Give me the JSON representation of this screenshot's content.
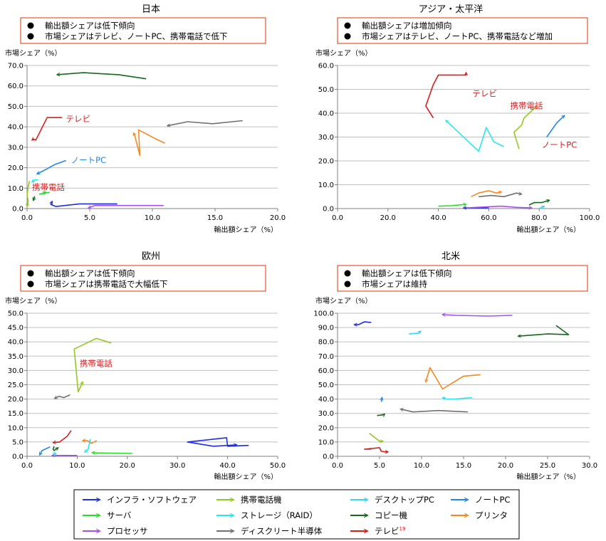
{
  "colors": {
    "infra": "#1f2fe0",
    "mobile": "#92c91f",
    "desktop": "#39d6f2",
    "notepc": "#2187e6",
    "server": "#24e024",
    "storage": "#27e8f0",
    "copier": "#15691a",
    "printer": "#f58820",
    "processor": "#a64ef0",
    "discrete": "#707070",
    "tv": "#d81d1d",
    "note_border": "#e8552e",
    "grid": "#c0c0c0",
    "axis": "#808080"
  },
  "legend": {
    "items": [
      {
        "key": "infra",
        "label": "インフラ・ソフトウェア"
      },
      {
        "key": "mobile",
        "label": "携帯電話機"
      },
      {
        "key": "desktop",
        "label": "デスクトップPC"
      },
      {
        "key": "notepc",
        "label": "ノートPC"
      },
      {
        "key": "server",
        "label": "サーバ"
      },
      {
        "key": "storage",
        "label": "ストレージ（RAID）"
      },
      {
        "key": "copier",
        "label": "コピー機"
      },
      {
        "key": "printer",
        "label": "プリンタ"
      },
      {
        "key": "processor",
        "label": "プロセッサ"
      },
      {
        "key": "discrete",
        "label": "ディスクリート半導体"
      },
      {
        "key": "tv",
        "label": "テレビ",
        "sup": "19"
      }
    ]
  },
  "chart_data": [
    {
      "type": "line",
      "title": "日本",
      "notes": [
        "輸出額シェアは低下傾向",
        "市場シェアはテレビ、ノートPC、携帯電話で低下"
      ],
      "xlabel": "輸出額シェア（%）",
      "ylabel": "市場シェア（%）",
      "xlim": [
        0,
        20
      ],
      "ylim": [
        0,
        70
      ],
      "xticks": [
        "0.0",
        "5.0",
        "10.0",
        "15.0",
        "20.0"
      ],
      "yticks": [
        "0.0",
        "10.0",
        "20.0",
        "30.0",
        "40.0",
        "50.0",
        "60.0",
        "70.0"
      ],
      "grid": true,
      "annotations": [
        {
          "text": "テレビ",
          "x": 3.1,
          "y": 42.5,
          "color_key": "tv"
        },
        {
          "text": "ノートPC",
          "x": 3.5,
          "y": 22.3,
          "color_key": "notepc"
        },
        {
          "text": "携帯電話",
          "x": 0.4,
          "y": 9.0,
          "color_key": "tv"
        }
      ],
      "series": [
        {
          "key": "copier",
          "points": [
            [
              9.5,
              63.5
            ],
            [
              7.3,
              65.5
            ],
            [
              4.5,
              66.5
            ],
            [
              2.4,
              65.5
            ]
          ]
        },
        {
          "key": "discrete",
          "points": [
            [
              17.2,
              43.0
            ],
            [
              14.8,
              41.5
            ],
            [
              12.8,
              42.5
            ],
            [
              11.2,
              40.5
            ]
          ]
        },
        {
          "key": "tv",
          "points": [
            [
              2.8,
              44.5
            ],
            [
              1.6,
              44.5
            ],
            [
              0.7,
              33.5
            ],
            [
              0.5,
              34.0
            ],
            [
              0.4,
              33.5
            ]
          ]
        },
        {
          "key": "printer",
          "points": [
            [
              11.0,
              32.0
            ],
            [
              10.3,
              34.0
            ],
            [
              8.9,
              38.5
            ],
            [
              9.0,
              26.0
            ],
            [
              8.6,
              35.5
            ],
            [
              8.5,
              37.0
            ]
          ]
        },
        {
          "key": "notepc",
          "points": [
            [
              3.1,
              23.5
            ],
            [
              2.2,
              21.5
            ],
            [
              1.3,
              18.5
            ],
            [
              0.8,
              17.0
            ]
          ]
        },
        {
          "key": "storage",
          "points": [
            [
              0.9,
              14.0
            ],
            [
              0.6,
              14.0
            ],
            [
              0.4,
              13.0
            ]
          ]
        },
        {
          "key": "mobile",
          "points": [
            [
              0.2,
              13.5
            ],
            [
              0.1,
              11.0
            ],
            [
              0.0,
              6.5
            ],
            [
              0.1,
              3.5
            ],
            [
              0.0,
              1.0
            ]
          ]
        },
        {
          "key": "server",
          "points": [
            [
              1.8,
              8.0
            ],
            [
              1.0,
              7.0
            ],
            [
              1.5,
              8.0
            ]
          ]
        },
        {
          "key": "desktop",
          "points": [
            [
              0.6,
              6.0
            ],
            [
              0.5,
              4.0
            ]
          ]
        },
        {
          "key": "copier",
          "points": [
            [
              0.6,
              6.0
            ],
            [
              0.5,
              4.0
            ]
          ]
        },
        {
          "key": "infra",
          "points": [
            [
              7.2,
              2.3
            ],
            [
              4.2,
              2.3
            ],
            [
              2.3,
              1.0
            ],
            [
              1.9,
              2.0
            ],
            [
              2.0,
              3.5
            ]
          ]
        },
        {
          "key": "processor",
          "points": [
            [
              10.9,
              1.5
            ],
            [
              7.2,
              1.5
            ],
            [
              5.4,
              1.5
            ],
            [
              4.9,
              0.3
            ]
          ]
        }
      ]
    },
    {
      "type": "line",
      "title": "アジア・太平洋",
      "notes": [
        "輸出額シェアは増加傾向",
        "市場シェアはテレビ、ノートPC、携帯電話など増加"
      ],
      "xlabel": "輸出額シェア（%）",
      "ylabel": "市場シェア（%）",
      "xlim": [
        0,
        100
      ],
      "ylim": [
        0,
        60
      ],
      "xticks": [
        "0.0",
        "20.0",
        "40.0",
        "60.0",
        "80.0",
        "100.0"
      ],
      "yticks": [
        "0.0",
        "10.0",
        "20.0",
        "30.0",
        "40.0",
        "50.0",
        "60.0"
      ],
      "grid": true,
      "annotations": [
        {
          "text": "テレビ",
          "x": 53.5,
          "y": 47.0,
          "color_key": "tv"
        },
        {
          "text": "携帯電話",
          "x": 68.5,
          "y": 42.0,
          "color_key": "tv"
        },
        {
          "text": "ノートPC",
          "x": 81.0,
          "y": 25.5,
          "color_key": "tv"
        }
      ],
      "series": [
        {
          "key": "tv",
          "points": [
            [
              38.0,
              38.0
            ],
            [
              35.0,
              43.0
            ],
            [
              38.0,
              52.0
            ],
            [
              40.0,
              56.0
            ],
            [
              44.0,
              56.0
            ],
            [
              51.0,
              56.0
            ],
            [
              51.0,
              57.0
            ]
          ]
        },
        {
          "key": "mobile",
          "points": [
            [
              72.0,
              25.0
            ],
            [
              70.0,
              32.0
            ],
            [
              73.0,
              35.0
            ],
            [
              74.0,
              38.0
            ],
            [
              79.0,
              43.0
            ]
          ]
        },
        {
          "key": "storage",
          "points": [
            [
              66.0,
              26.0
            ],
            [
              62.0,
              28.0
            ],
            [
              59.0,
              34.0
            ],
            [
              56.0,
              24.0
            ],
            [
              43.0,
              37.0
            ]
          ]
        },
        {
          "key": "notepc",
          "points": [
            [
              83.0,
              30.0
            ],
            [
              87.0,
              36.0
            ],
            [
              90.0,
              39.0
            ]
          ]
        },
        {
          "key": "printer",
          "points": [
            [
              53.0,
              5.0
            ],
            [
              56.0,
              6.5
            ],
            [
              60.0,
              7.5
            ],
            [
              63.0,
              6.5
            ],
            [
              65.0,
              7.0
            ]
          ]
        },
        {
          "key": "discrete",
          "points": [
            [
              56.0,
              5.0
            ],
            [
              61.0,
              5.5
            ],
            [
              66.0,
              5.0
            ],
            [
              71.0,
              6.5
            ],
            [
              73.0,
              6.0
            ]
          ]
        },
        {
          "key": "copier",
          "points": [
            [
              76.0,
              1.5
            ],
            [
              78.0,
              2.5
            ],
            [
              81.0,
              2.5
            ],
            [
              84.0,
              3.5
            ]
          ]
        },
        {
          "key": "server",
          "points": [
            [
              40.0,
              1.0
            ],
            [
              45.0,
              1.2
            ],
            [
              51.0,
              1.8
            ]
          ]
        },
        {
          "key": "infra",
          "points": [
            [
              60.0,
              0.3
            ],
            [
              50.0,
              0.3
            ]
          ]
        },
        {
          "key": "processor",
          "points": [
            [
              51.0,
              0.3
            ],
            [
              65.0,
              1.0
            ],
            [
              71.0,
              0.5
            ],
            [
              77.0,
              0.3
            ]
          ]
        },
        {
          "key": "desktop",
          "points": [
            [
              80.0,
              0.0
            ],
            [
              82.0,
              1.0
            ]
          ]
        }
      ]
    },
    {
      "type": "line",
      "title": "欧州",
      "notes": [
        "輸出額シェアは低下傾向",
        "市場シェアは携帯電話で大幅低下"
      ],
      "xlabel": "輸出額シェア（%）",
      "ylabel": "市場シェア（%）",
      "xlim": [
        0,
        50
      ],
      "ylim": [
        0,
        50
      ],
      "xticks": [
        "0.0",
        "10.0",
        "20.0",
        "30.0",
        "40.0",
        "50.0"
      ],
      "yticks": [
        "0.0",
        "5.0",
        "10.0",
        "15.0",
        "20.0",
        "25.0",
        "30.0",
        "35.0",
        "40.0",
        "45.0",
        "50.0"
      ],
      "grid": true,
      "annotations": [
        {
          "text": "携帯電話",
          "x": 10.5,
          "y": 31.5,
          "color_key": "tv"
        }
      ],
      "series": [
        {
          "key": "mobile",
          "points": [
            [
              16.8,
              39.6
            ],
            [
              13.8,
              41.2
            ],
            [
              9.4,
              37.5
            ],
            [
              10.2,
              22.5
            ],
            [
              11.1,
              26.0
            ]
          ]
        },
        {
          "key": "discrete",
          "points": [
            [
              8.6,
              21.5
            ],
            [
              7.3,
              20.5
            ],
            [
              6.4,
              21.0
            ],
            [
              5.5,
              20.2
            ]
          ]
        },
        {
          "key": "infra",
          "points": [
            [
              44.2,
              3.8
            ],
            [
              40.0,
              3.5
            ],
            [
              39.8,
              6.5
            ],
            [
              32.0,
              5.0
            ],
            [
              37.2,
              3.5
            ],
            [
              41.8,
              4.0
            ]
          ]
        },
        {
          "key": "tv",
          "points": [
            [
              8.8,
              9.0
            ],
            [
              8.0,
              7.0
            ],
            [
              6.5,
              5.0
            ],
            [
              5.2,
              4.8
            ]
          ]
        },
        {
          "key": "printer",
          "points": [
            [
              13.9,
              5.5
            ],
            [
              12.8,
              4.5
            ],
            [
              12.6,
              5.0
            ],
            [
              11.9,
              5.5
            ],
            [
              11.1,
              5.5
            ]
          ]
        },
        {
          "key": "server",
          "points": [
            [
              21.0,
              1.0
            ],
            [
              13.5,
              1.2
            ],
            [
              13.0,
              1.3
            ]
          ]
        },
        {
          "key": "storage",
          "points": [
            [
              12.6,
              6.0
            ],
            [
              12.2,
              2.5
            ],
            [
              11.5,
              1.5
            ]
          ]
        },
        {
          "key": "notepc",
          "points": [
            [
              4.6,
              3.3
            ],
            [
              3.0,
              2.0
            ],
            [
              2.5,
              0.5
            ]
          ]
        },
        {
          "key": "copier",
          "points": [
            [
              5.4,
              3.5
            ],
            [
              5.2,
              2.5
            ],
            [
              5.4,
              2.0
            ],
            [
              6.2,
              3.0
            ]
          ]
        },
        {
          "key": "processor",
          "points": [
            [
              10.0,
              0.3
            ],
            [
              5.0,
              0.3
            ]
          ]
        },
        {
          "key": "desktop",
          "points": [
            [
              5.5,
              1.5
            ],
            [
              5.5,
              0.3
            ]
          ]
        }
      ]
    },
    {
      "type": "line",
      "title": "北米",
      "notes": [
        "輸出額シェアは低下傾向",
        "市場シェアは維持"
      ],
      "xlabel": "輸出額シェア（%）",
      "ylabel": "市場シェア（%）",
      "xlim": [
        0,
        30
      ],
      "ylim": [
        0,
        100
      ],
      "xticks": [
        "0.0",
        "5.0",
        "10.0",
        "15.0",
        "20.0",
        "25.0",
        "30.0"
      ],
      "yticks": [
        "0.0",
        "10.0",
        "20.0",
        "30.0",
        "40.0",
        "50.0",
        "60.0",
        "70.0",
        "80.0",
        "90.0",
        "100.0"
      ],
      "grid": true,
      "annotations": [],
      "series": [
        {
          "key": "processor",
          "points": [
            [
              20.8,
              98.5
            ],
            [
              18.0,
              98.0
            ],
            [
              14.0,
              98.5
            ],
            [
              12.5,
              99.0
            ]
          ]
        },
        {
          "key": "infra",
          "points": [
            [
              4.0,
              93.5
            ],
            [
              3.2,
              94.0
            ],
            [
              2.5,
              92.0
            ],
            [
              2.0,
              92.0
            ]
          ]
        },
        {
          "key": "copier",
          "points": [
            [
              26.0,
              91.5
            ],
            [
              27.5,
              85.0
            ],
            [
              25.0,
              85.5
            ],
            [
              21.5,
              84.0
            ]
          ]
        },
        {
          "key": "desktop",
          "points": [
            [
              8.5,
              85.5
            ],
            [
              9.6,
              86.0
            ],
            [
              9.9,
              87.5
            ]
          ]
        },
        {
          "key": "printer",
          "points": [
            [
              17.0,
              57.0
            ],
            [
              15.0,
              56.0
            ],
            [
              12.5,
              47.0
            ],
            [
              11.0,
              62.0
            ],
            [
              10.5,
              52.0
            ]
          ]
        },
        {
          "key": "storage",
          "points": [
            [
              16.0,
              41.0
            ],
            [
              14.0,
              40.0
            ],
            [
              13.0,
              40.0
            ],
            [
              12.5,
              41.0
            ]
          ]
        },
        {
          "key": "notepc",
          "points": [
            [
              5.2,
              38.0
            ],
            [
              5.3,
              41.0
            ]
          ]
        },
        {
          "key": "copier",
          "points": [
            [
              4.7,
              28.5
            ],
            [
              5.5,
              29.0
            ],
            [
              5.6,
              29.5
            ]
          ]
        },
        {
          "key": "discrete",
          "points": [
            [
              15.5,
              31.0
            ],
            [
              12.0,
              32.0
            ],
            [
              9.0,
              31.0
            ],
            [
              7.5,
              33.0
            ]
          ]
        },
        {
          "key": "mobile",
          "points": [
            [
              3.8,
              16.0
            ],
            [
              5.0,
              10.5
            ],
            [
              5.4,
              10.5
            ]
          ]
        },
        {
          "key": "tv",
          "points": [
            [
              4.0,
              5.0
            ],
            [
              3.2,
              5.0
            ],
            [
              5.0,
              6.0
            ],
            [
              5.2,
              3.5
            ],
            [
              6.0,
              3.0
            ]
          ]
        }
      ]
    }
  ]
}
